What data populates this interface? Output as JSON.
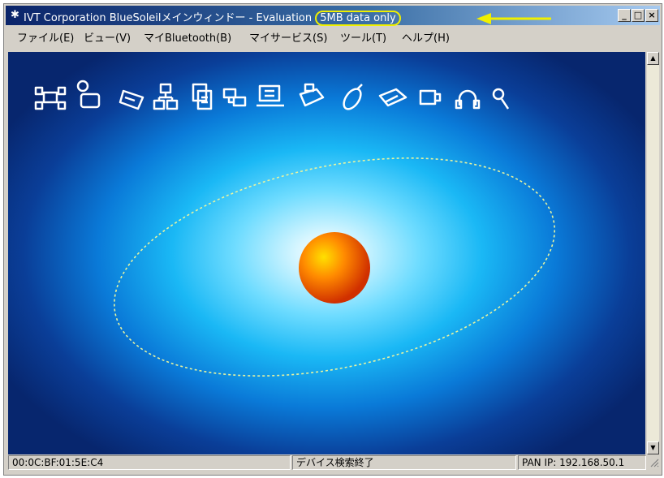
{
  "window": {
    "title_main": "IVT Corporation BlueSoleilメインウィンドー - Evaluation",
    "title_note": "5MB data only",
    "controls": [
      "_",
      "□",
      "×"
    ]
  },
  "menu": [
    "ファイル(E)",
    "ビュー(V)",
    "マイBluetooth(B)",
    "マイサービス(S)",
    "ツール(T)",
    "ヘルプ(H)"
  ],
  "services": [
    "network-service-icon",
    "fax-service-icon",
    "audio-gateway-icon",
    "lan-access-icon",
    "file-transfer-icon",
    "serial-port-icon",
    "dialup-networking-icon",
    "printer-icon",
    "hid-mouse-icon",
    "sync-icon",
    "object-push-icon",
    "headset-icon",
    "search-service-icon"
  ],
  "status": {
    "address": "00:0C:BF:01:5E:C4",
    "message": "デバイス検索終了",
    "pan_ip": "PAN IP: 192.168.50.1"
  },
  "colors": {
    "title_start": "#0a246a",
    "title_end": "#a6caf0",
    "highlight": "#f0f000",
    "canvas_dark": "#07266e",
    "canvas_light": "#6fdcff",
    "sphere": "#ff7a00"
  }
}
